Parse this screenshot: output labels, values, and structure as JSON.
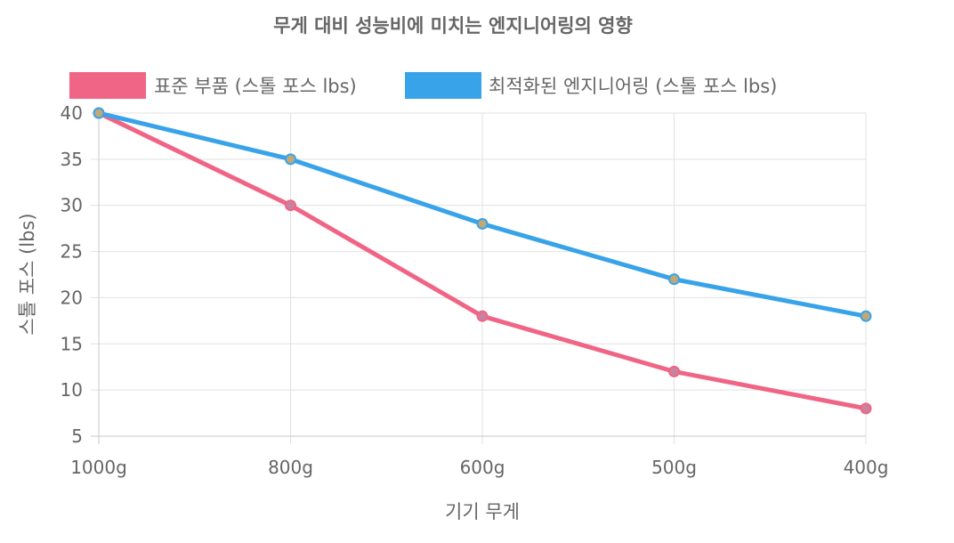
{
  "chart_data": {
    "type": "line",
    "title": "무게 대비 성능비에 미치는 엔지니어링의 영향",
    "xlabel": "기기 무게",
    "ylabel": "스톨 포스 (lbs)",
    "categories": [
      "1000g",
      "800g",
      "600g",
      "500g",
      "400g"
    ],
    "ylim": [
      5,
      40
    ],
    "yticks": [
      5,
      10,
      15,
      20,
      25,
      30,
      35,
      40
    ],
    "grid": true,
    "legend_position": "top",
    "series": [
      {
        "name": "표준 부품 (스톨 포스 lbs)",
        "values": [
          40,
          30,
          18,
          12,
          8
        ],
        "color": "#f06585",
        "point_fill": "#c882a0"
      },
      {
        "name": "최적화된 엔지니어링 (스톨 포스 lbs)",
        "values": [
          40,
          35,
          28,
          22,
          18
        ],
        "color": "#38a3e8",
        "point_fill": "#c0a878"
      }
    ]
  }
}
